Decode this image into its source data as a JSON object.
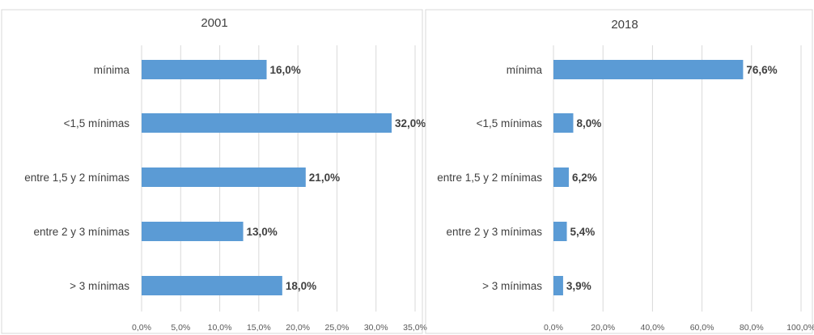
{
  "chart_data": [
    {
      "type": "bar",
      "orientation": "horizontal",
      "title": "2001",
      "categories": [
        "mínima",
        "<1,5 mínimas",
        "entre 1,5 y 2 mínimas",
        "entre 2 y 3 mínimas",
        "> 3 mínimas"
      ],
      "values": [
        16.0,
        32.0,
        21.0,
        13.0,
        18.0
      ],
      "value_labels": [
        "16,0%",
        "32,0%",
        "21,0%",
        "13,0%",
        "18,0%"
      ],
      "xlim": [
        0,
        35
      ],
      "xticks": [
        "0,0%",
        "5,0%",
        "10,0%",
        "15,0%",
        "20,0%",
        "25,0%",
        "30,0%",
        "35,0%"
      ],
      "grid": true,
      "color": "#5b9bd5"
    },
    {
      "type": "bar",
      "orientation": "horizontal",
      "title": "2018",
      "categories": [
        "mínima",
        "<1,5 mínimas",
        "entre 1,5 y 2 mínimas",
        "entre 2 y 3 mínimas",
        "> 3 mínimas"
      ],
      "values": [
        76.6,
        8.0,
        6.2,
        5.4,
        3.9
      ],
      "value_labels": [
        "76,6%",
        "8,0%",
        "6,2%",
        "5,4%",
        "3,9%"
      ],
      "xlim": [
        0,
        100
      ],
      "xticks": [
        "0,0%",
        "20,0%",
        "40,0%",
        "60,0%",
        "80,0%",
        "100,0%"
      ],
      "grid": true,
      "color": "#5b9bd5"
    }
  ]
}
